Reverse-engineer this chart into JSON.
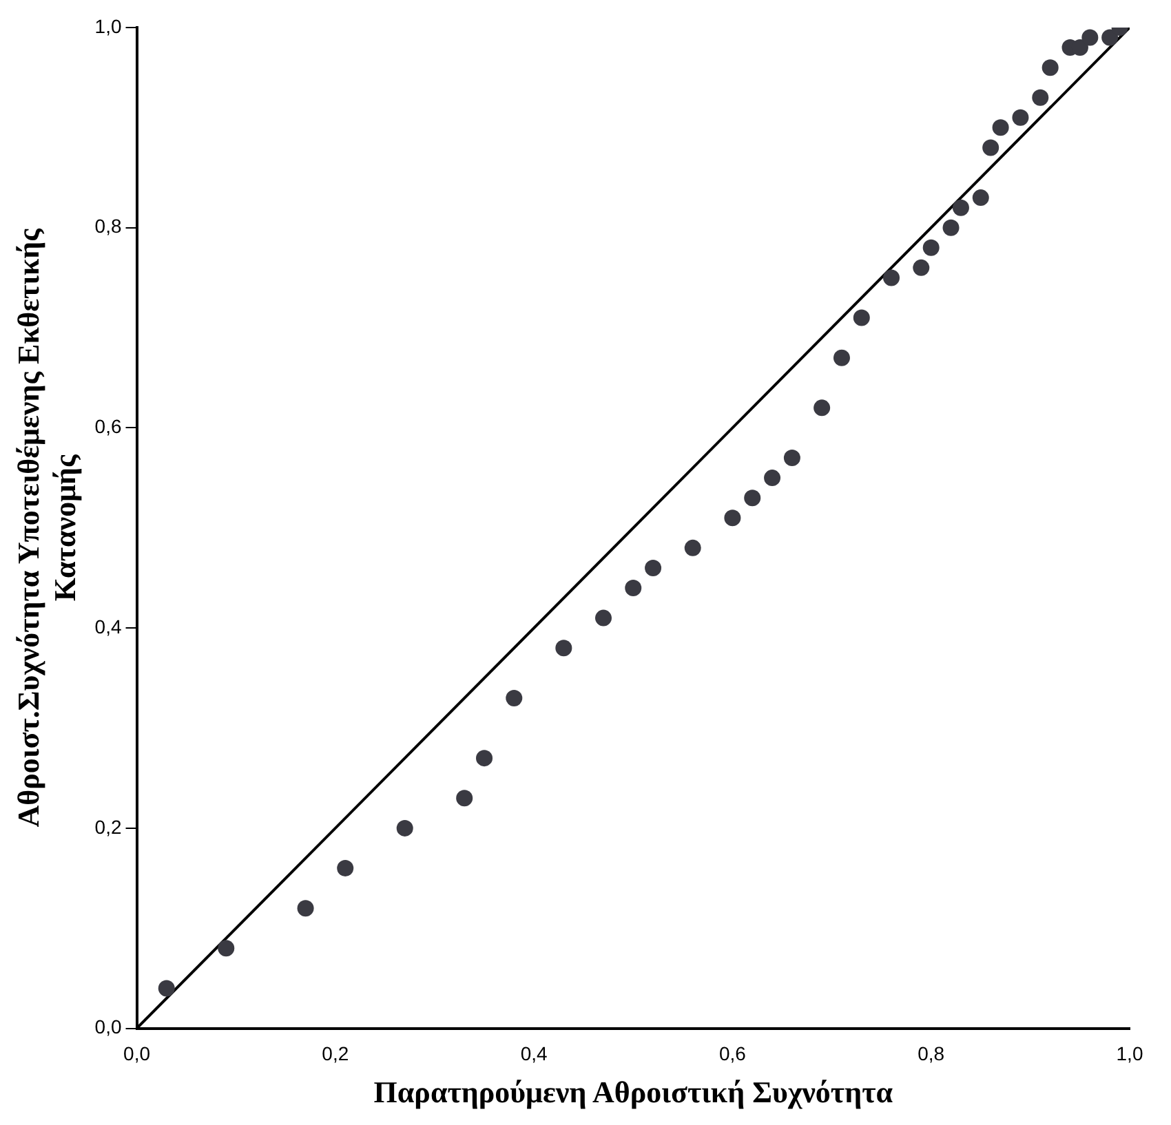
{
  "chart_data": {
    "type": "scatter",
    "xlabel": "Παρατηρούμενη Αθροιστική Συχνότητα",
    "ylabel": "Αθροιστ.Συχνότητα Υποτειθέμενης Εκθετικής\nΚατανομής",
    "x": [
      0.03,
      0.09,
      0.17,
      0.21,
      0.27,
      0.33,
      0.35,
      0.38,
      0.43,
      0.47,
      0.5,
      0.52,
      0.56,
      0.6,
      0.62,
      0.64,
      0.66,
      0.69,
      0.71,
      0.73,
      0.76,
      0.79,
      0.8,
      0.82,
      0.83,
      0.85,
      0.86,
      0.87,
      0.89,
      0.91,
      0.92,
      0.94,
      0.95,
      0.96,
      0.98,
      0.99
    ],
    "series": [
      {
        "color": "#3a3a42",
        "marker": "circle",
        "values": [
          0.04,
          0.08,
          0.12,
          0.16,
          0.2,
          0.23,
          0.27,
          0.33,
          0.38,
          0.41,
          0.44,
          0.46,
          0.48,
          0.51,
          0.53,
          0.55,
          0.57,
          0.62,
          0.67,
          0.71,
          0.75,
          0.76,
          0.78,
          0.8,
          0.82,
          0.83,
          0.88,
          0.9,
          0.91,
          0.93,
          0.96,
          0.98,
          0.98,
          0.99,
          0.99,
          1.0
        ]
      },
      {
        "type": "line",
        "color": "#000000",
        "marker": "none",
        "x": [
          0,
          1
        ],
        "values": [
          0,
          1
        ]
      }
    ],
    "xlim": [
      0,
      1
    ],
    "ylim": [
      0,
      1
    ],
    "xticks": [
      {
        "value": 0,
        "label": "0,0"
      },
      {
        "value": 0.2,
        "label": "0,2"
      },
      {
        "value": 0.4,
        "label": "0,4"
      },
      {
        "value": 0.6,
        "label": "0,6"
      },
      {
        "value": 0.8,
        "label": "0,8"
      },
      {
        "value": 1,
        "label": "1,0"
      }
    ],
    "yticks": [
      {
        "value": 0,
        "label": "0,0"
      },
      {
        "value": 0.2,
        "label": "0,2"
      },
      {
        "value": 0.4,
        "label": "0,4"
      },
      {
        "value": 0.6,
        "label": "0,6"
      },
      {
        "value": 0.8,
        "label": "0,8"
      },
      {
        "value": 1,
        "label": "1,0"
      }
    ],
    "grid": false,
    "legend": false
  }
}
